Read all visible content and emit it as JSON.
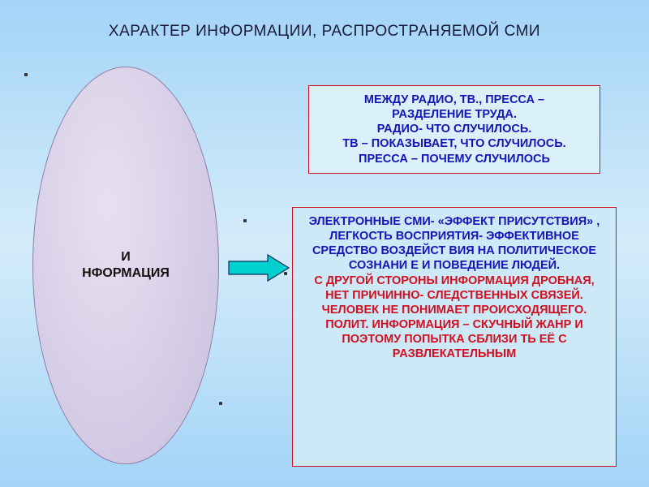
{
  "title": "ХАРАКТЕР ИНФОРМАЦИИ, РАСПРОСТРАНЯЕМОЙ СМИ",
  "ellipse": {
    "label": "И\nНФОРМАЦИЯ"
  },
  "arrow": {
    "fill": "#00d0d0",
    "stroke": "#0a2a5a"
  },
  "box_top": {
    "line1": "МЕЖДУ  РАДИО, ТВ., ПРЕССА –",
    "line2": "РАЗДЕЛЕНИЕ ТРУДА.",
    "line3": "РАДИО- ЧТО СЛУЧИЛОСЬ.",
    "line4": "ТВ – ПОКАЗЫВАЕТ, ЧТО СЛУЧИЛОСЬ.",
    "line5": "ПРЕССА – ПОЧЕМУ СЛУЧИЛОСЬ"
  },
  "box_bottom": {
    "p1": "ЭЛЕКТРОННЫЕ СМИ- «ЭФФЕКТ ПРИСУТСТВИЯ» , ЛЕГКОСТЬ ВОСПРИЯТИЯ- ЭФФЕКТИВНОЕ СРЕДСТВО ВОЗДЕЙСТ ВИЯ НА ПОЛИТИЧЕСКОЕ СОЗНАНИ Е И ПОВЕДЕНИЕ ЛЮДЕЙ.",
    "p2": "С ДРУГОЙ СТОРОНЫ  ИНФОРМАЦИЯ ДРОБНАЯ, НЕТ ПРИЧИННО- СЛЕДСТВЕННЫХ СВЯЗЕЙ. ЧЕЛОВЕК НЕ ПОНИМАЕТ ПРОИСХОДЯЩЕГО. ПОЛИТ. ИНФОРМАЦИЯ – СКУЧНЫЙ ЖАНР И ПОЭТОМУ  ПОПЫТКА СБЛИЗИ ТЬ ЕЁ С РАЗВЛЕКАТЕЛЬНЫМ"
  },
  "colors": {
    "bg_top": "#a3d4f7",
    "bg_mid": "#d4ecfa",
    "border_red": "#d01020",
    "text_blue": "#1414b8"
  }
}
